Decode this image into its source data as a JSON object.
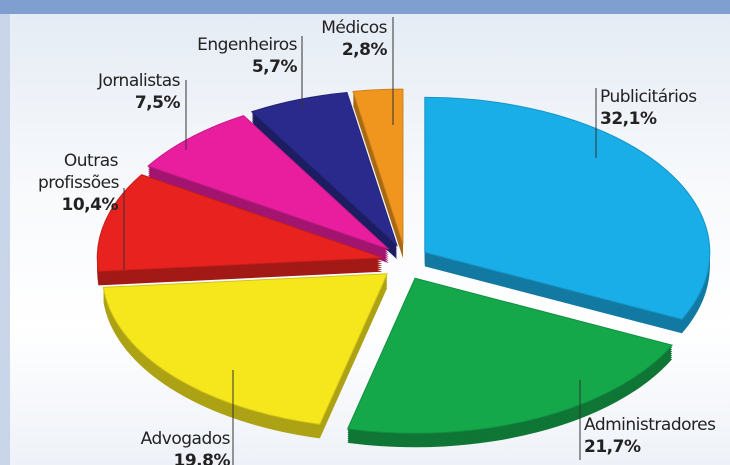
{
  "chart_data": {
    "type": "pie",
    "categories": [
      "Publicitários",
      "Administradores",
      "Advogados",
      "Outras profissões",
      "Jornalistas",
      "Engenheiros",
      "Médicos"
    ],
    "values": [
      32.1,
      21.7,
      19.8,
      10.4,
      7.5,
      5.7,
      2.8
    ],
    "value_labels": [
      "32,1%",
      "21,7%",
      "19,8%",
      "10,4%",
      "7,5%",
      "5,7%",
      "2,8%"
    ],
    "colors": [
      "#19aee8",
      "#15a84b",
      "#f6e71c",
      "#e8231f",
      "#e81e9f",
      "#2a2a8c",
      "#f0961e"
    ]
  }
}
